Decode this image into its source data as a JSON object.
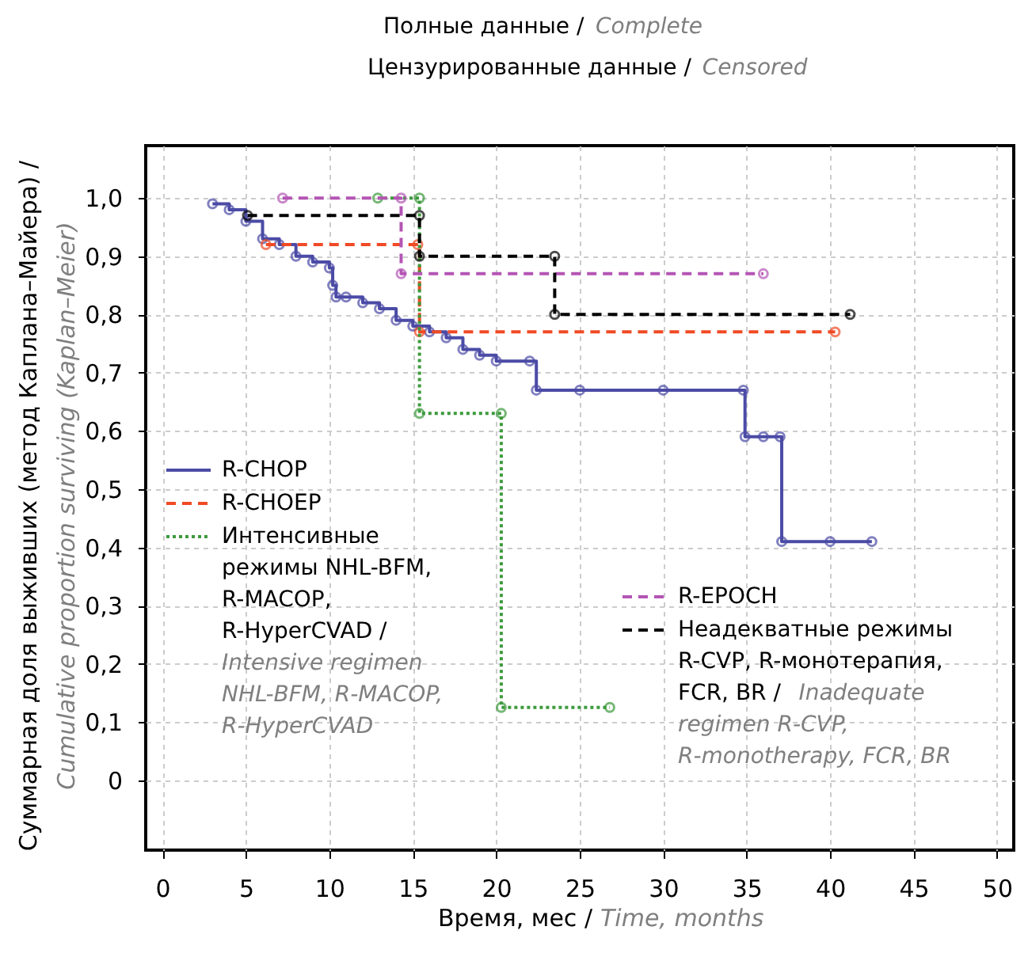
{
  "chart_data": {
    "type": "step",
    "series": [
      {
        "name": "R-CHOP",
        "color": "#4b4ba6",
        "line_style": "solid",
        "x": [
          3,
          4,
          5,
          6,
          7,
          8,
          9,
          10,
          10.2,
          10.4,
          11,
          12,
          13,
          14,
          15,
          16,
          17,
          18,
          19,
          20,
          22,
          22.4,
          25,
          30,
          34.8,
          34.9,
          36,
          37,
          37.1,
          40,
          42.5
        ],
        "values": [
          0.99,
          0.98,
          0.96,
          0.93,
          0.92,
          0.9,
          0.89,
          0.88,
          0.85,
          0.83,
          0.83,
          0.82,
          0.81,
          0.79,
          0.78,
          0.77,
          0.76,
          0.74,
          0.73,
          0.72,
          0.72,
          0.67,
          0.67,
          0.67,
          0.67,
          0.59,
          0.59,
          0.59,
          0.41,
          0.41,
          0.41
        ]
      },
      {
        "name": "R-CHOEP",
        "color": "#f04a24",
        "line_style": "dashed",
        "x": [
          6.2,
          15.3,
          15.4,
          40.3
        ],
        "values": [
          0.92,
          0.92,
          0.77,
          0.77
        ]
      },
      {
        "name": "Интенсивные режимы NHL-BFM, R-MACOP, R-HyperCVAD / Intensive regimen NHL-BFM, R-MACOP, R-HyperCVAD",
        "color": "#3c9a3c",
        "line_style": "dotted",
        "x": [
          12.9,
          15.4,
          15.4,
          20.3,
          20.3,
          26.8
        ],
        "values": [
          1.0,
          1.0,
          0.63,
          0.63,
          0.125,
          0.125
        ]
      },
      {
        "name": "R-EPOCH",
        "color": "#b455b4",
        "line_style": "dashed",
        "x": [
          7.2,
          14.3,
          14.3,
          36
        ],
        "values": [
          1.0,
          1.0,
          0.87,
          0.87
        ]
      },
      {
        "name": "Неадекватные режимы R-CVP, R-монотерапия, FCR, BR / Inadequate regimen R-CVP, R-monotherapy, FCR, BR",
        "color": "#000000",
        "line_style": "dashed",
        "x": [
          5.1,
          15.4,
          15.4,
          23.5,
          23.5,
          41.2
        ],
        "values": [
          0.97,
          0.97,
          0.9,
          0.9,
          0.8,
          0.8
        ]
      }
    ],
    "xlim": [
      -1,
      51
    ],
    "xticks": [
      0,
      5,
      10,
      15,
      20,
      25,
      30,
      35,
      40,
      45,
      50
    ],
    "ylim": [
      -0.12,
      1.09
    ],
    "yticks": [
      {
        "value": 0,
        "label": "0"
      },
      {
        "value": 0.1,
        "label": "0,1"
      },
      {
        "value": 0.2,
        "label": "0,2"
      },
      {
        "value": 0.3,
        "label": "0,3"
      },
      {
        "value": 0.4,
        "label": "0,4"
      },
      {
        "value": 0.5,
        "label": "0,5"
      },
      {
        "value": 0.6,
        "label": "0,6"
      },
      {
        "value": 0.7,
        "label": "0,7"
      },
      {
        "value": 0.8,
        "label": "0,8"
      },
      {
        "value": 0.9,
        "label": "0,9"
      },
      {
        "value": 1.0,
        "label": "1,0"
      }
    ],
    "xlabel": "Время, мес / Time, months",
    "ylabel": "Суммарная доля выживших (метод Каплана–Майера) / Cumulative proportion surviving (Kaplan–Meier)",
    "annotations": [
      "Полные данные / Complete",
      "Цензурированные данные / Censored"
    ],
    "grid": true,
    "legend": "left",
    "marker": "circle"
  }
}
